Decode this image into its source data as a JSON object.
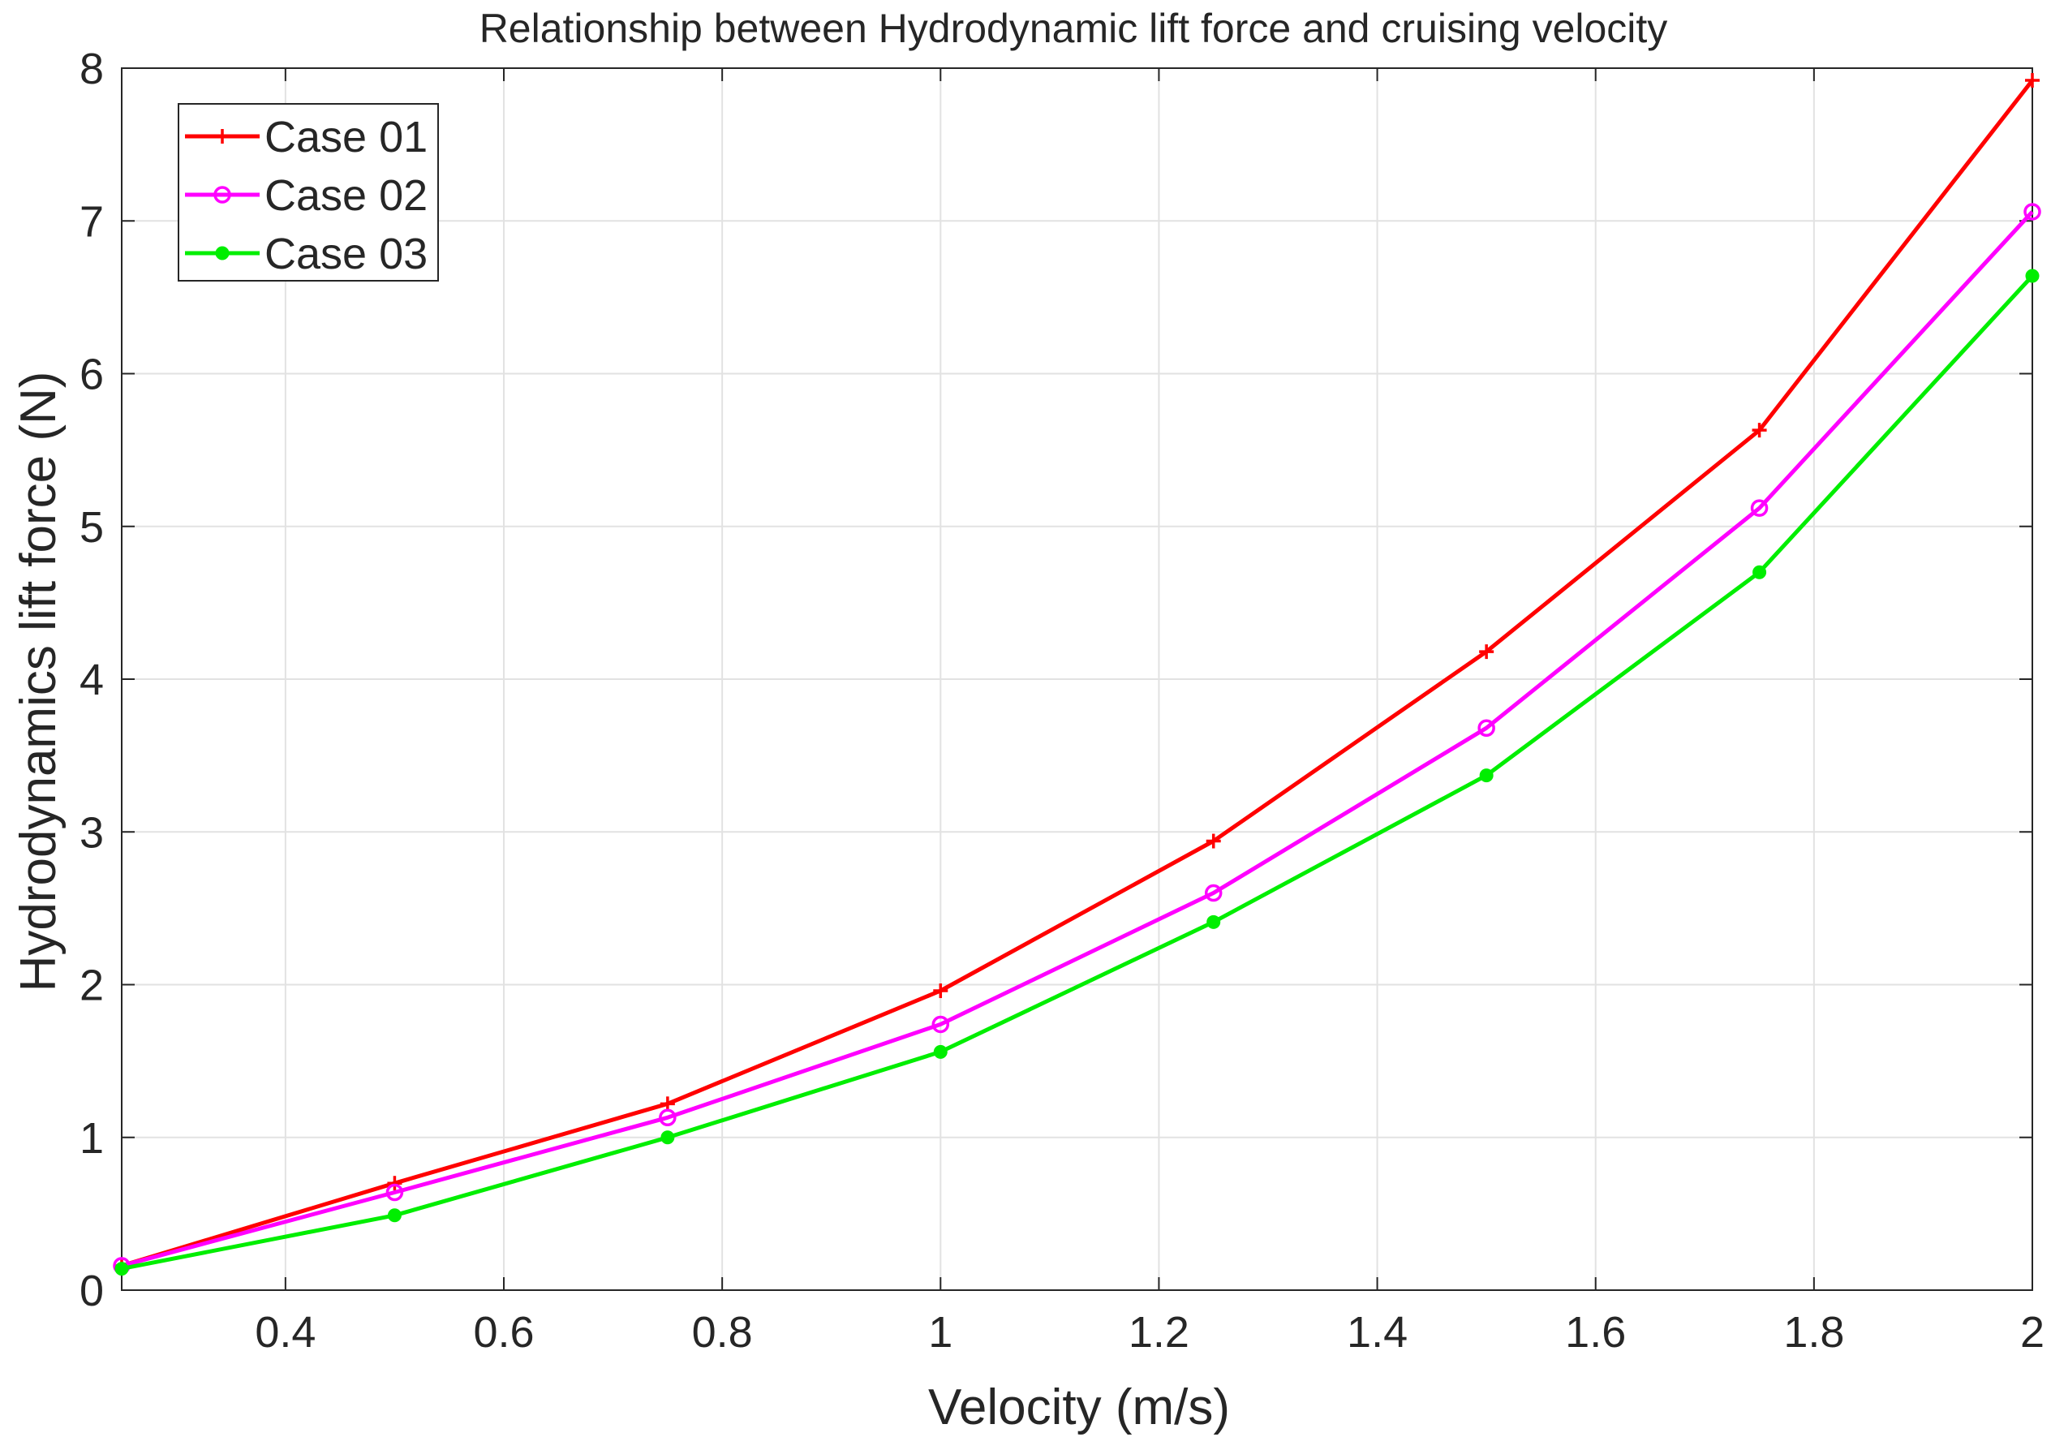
{
  "chart_data": {
    "type": "line",
    "title": "Relationship between Hydrodynamic lift force and cruising velocity",
    "xlabel": "Velocity (m/s)",
    "ylabel": "Hydrodynamics lift force (N)",
    "xlim": [
      0.25,
      2
    ],
    "ylim": [
      0,
      8
    ],
    "xticks": [
      0.4,
      0.6,
      0.8,
      1,
      1.2,
      1.4,
      1.6,
      1.8,
      2
    ],
    "xtick_labels": [
      "0.4",
      "0.6",
      "0.8",
      "1",
      "1.2",
      "1.4",
      "1.6",
      "1.8",
      "2"
    ],
    "yticks": [
      0,
      1,
      2,
      3,
      4,
      5,
      6,
      7,
      8
    ],
    "ytick_labels": [
      "0",
      "1",
      "2",
      "3",
      "4",
      "5",
      "6",
      "7",
      "8"
    ],
    "grid": true,
    "legend_position": "top-left",
    "x": [
      0.25,
      0.5,
      0.75,
      1.0,
      1.25,
      1.5,
      1.75,
      2.0
    ],
    "series": [
      {
        "name": "Case 01",
        "color": "#ff0000",
        "marker": "plus",
        "values": [
          0.16,
          0.7,
          1.22,
          1.96,
          2.94,
          4.18,
          5.63,
          7.92
        ]
      },
      {
        "name": "Case 02",
        "color": "#ff00ff",
        "marker": "circle",
        "values": [
          0.16,
          0.64,
          1.13,
          1.74,
          2.6,
          3.68,
          5.12,
          7.06
        ]
      },
      {
        "name": "Case 03",
        "color": "#00ee00",
        "marker": "dot",
        "values": [
          0.14,
          0.49,
          1.0,
          1.56,
          2.41,
          3.37,
          4.7,
          6.64
        ]
      }
    ]
  }
}
